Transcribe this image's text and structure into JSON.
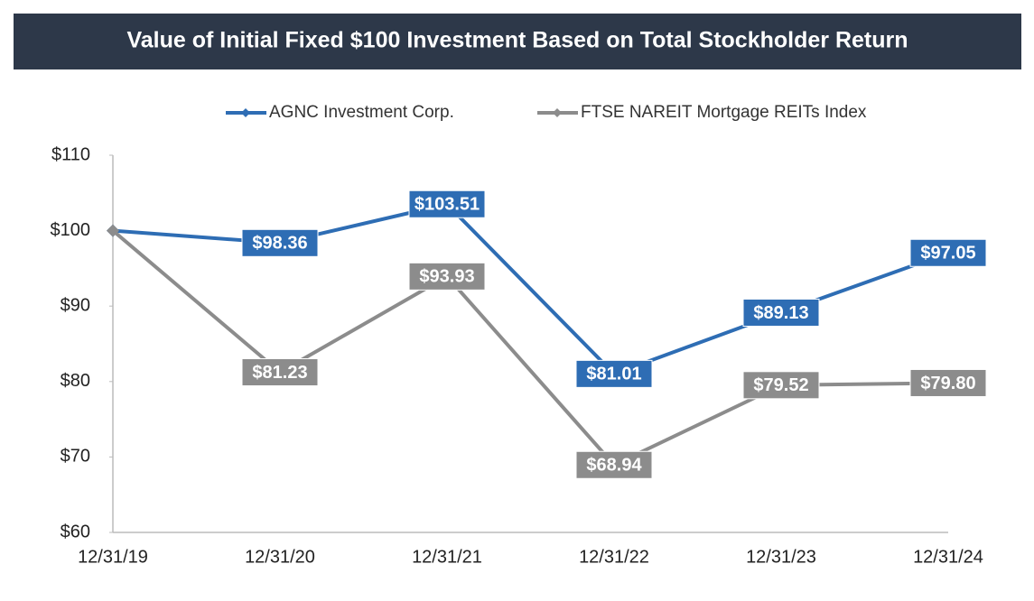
{
  "chart_data": {
    "type": "line",
    "title": "Value of Initial Fixed $100 Investment Based on Total Stockholder Return",
    "categories": [
      "12/31/19",
      "12/31/20",
      "12/31/21",
      "12/31/22",
      "12/31/23",
      "12/31/24"
    ],
    "series": [
      {
        "name": "AGNC Investment Corp.",
        "color": "#2e6db4",
        "values": [
          100,
          98.36,
          103.51,
          81.01,
          89.13,
          97.05
        ],
        "value_labels": [
          null,
          "$98.36",
          "$103.51",
          "$81.01",
          "$89.13",
          "$97.05"
        ]
      },
      {
        "name": "FTSE NAREIT Mortgage REITs Index",
        "color": "#8c8c8c",
        "values": [
          100,
          81.23,
          93.93,
          68.94,
          79.52,
          79.8
        ],
        "value_labels": [
          null,
          "$81.23",
          "$93.93",
          "$68.94",
          "$79.52",
          "$79.80"
        ]
      }
    ],
    "ylim": [
      60,
      110
    ],
    "yticks": [
      {
        "value": 60,
        "label": "$60"
      },
      {
        "value": 70,
        "label": "$70"
      },
      {
        "value": 80,
        "label": "$80"
      },
      {
        "value": 90,
        "label": "$90"
      },
      {
        "value": 100,
        "label": "$100"
      },
      {
        "value": 110,
        "label": "$110"
      }
    ],
    "grid": false,
    "legend": "top"
  }
}
